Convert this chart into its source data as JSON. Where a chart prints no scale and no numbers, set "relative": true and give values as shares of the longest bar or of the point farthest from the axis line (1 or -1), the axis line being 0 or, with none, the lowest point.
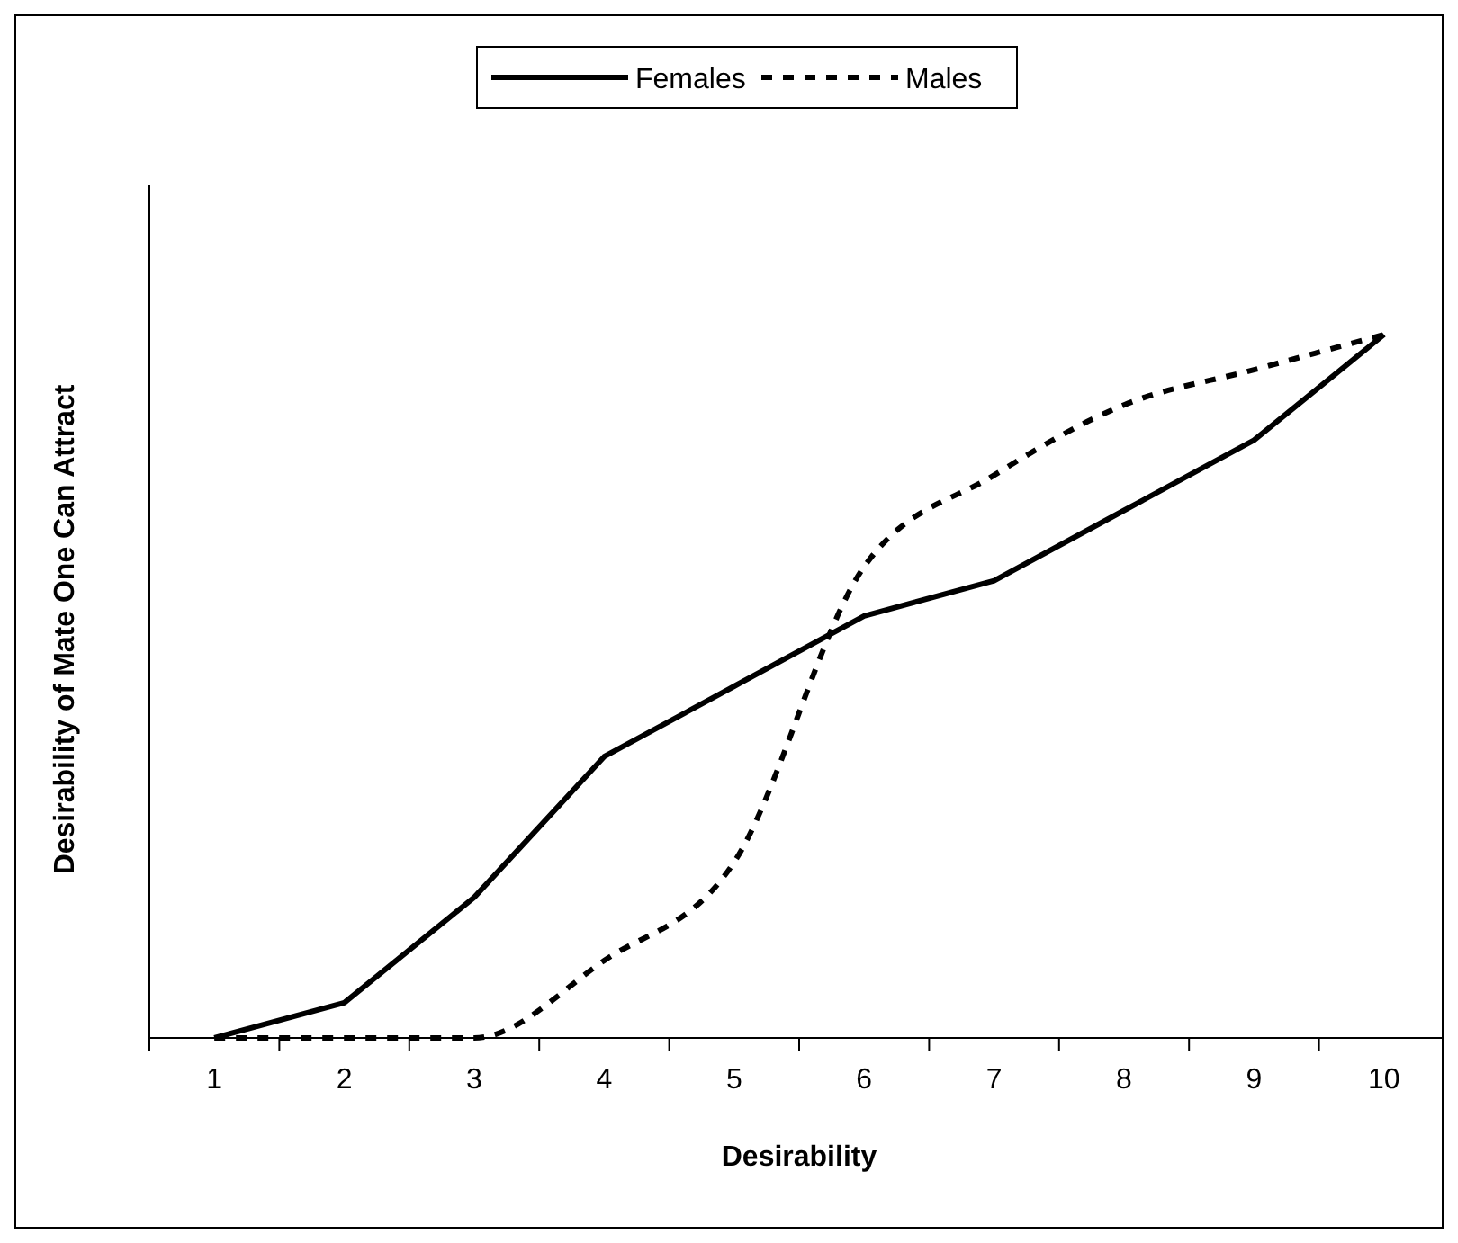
{
  "chart_data": {
    "type": "line",
    "relative": true,
    "xlabel": "Desirability",
    "ylabel": "Desirability of Mate One Can Attract",
    "categories": [
      "1",
      "2",
      "3",
      "4",
      "5",
      "6",
      "7",
      "8",
      "9",
      "10"
    ],
    "legend": "top",
    "marker": "none",
    "series": [
      {
        "name": "Females",
        "color": "#000000",
        "line_style": "solid",
        "values": [
          0,
          0.05,
          0.2,
          0.4,
          0.5,
          0.6,
          0.65,
          0.75,
          0.85,
          1
        ]
      },
      {
        "name": "Males",
        "color": "#000000",
        "line_style": "dashed",
        "values": [
          0,
          0,
          0,
          0.11,
          0.25,
          0.67,
          0.8,
          0.9,
          0.95,
          1
        ]
      }
    ]
  }
}
